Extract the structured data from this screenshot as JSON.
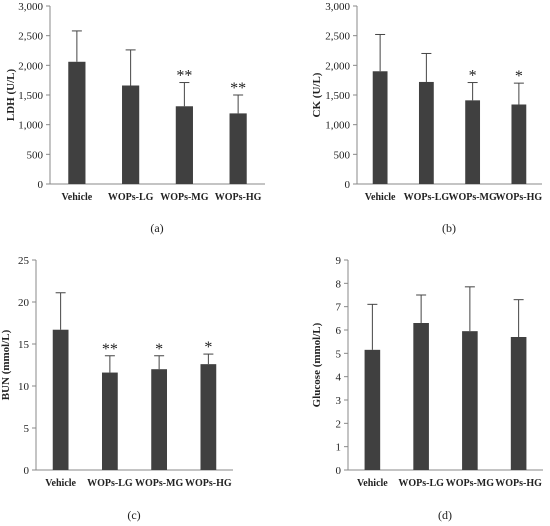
{
  "chart_data": [
    {
      "type": "bar",
      "panel_label": "(a)",
      "ylabel": "LDH (U/L)",
      "ylim": [
        0,
        3000
      ],
      "yticks": [
        "0",
        "500",
        "1,000",
        "1,500",
        "2,000",
        "2,500",
        "3,000"
      ],
      "ytick_values": [
        0,
        500,
        1000,
        1500,
        2000,
        2500,
        3000
      ],
      "categories": [
        "Vehicle",
        "WOPs-LG",
        "WOPs-MG",
        "WOPs-HG"
      ],
      "values": [
        2060,
        1660,
        1310,
        1190
      ],
      "errors": [
        520,
        600,
        400,
        310
      ],
      "significance": [
        "",
        "",
        "**",
        "**"
      ],
      "bar_color": "#404040"
    },
    {
      "type": "bar",
      "panel_label": "(b)",
      "ylabel": "CK (U/L)",
      "ylim": [
        0,
        3000
      ],
      "yticks": [
        "0",
        "500",
        "1,000",
        "1,500",
        "2,000",
        "2,500",
        "3,000"
      ],
      "ytick_values": [
        0,
        500,
        1000,
        1500,
        2000,
        2500,
        3000
      ],
      "categories": [
        "Vehicle",
        "WOPs-LG",
        "WOPs-MG",
        "WOPs-HG"
      ],
      "values": [
        1900,
        1720,
        1410,
        1340
      ],
      "errors": [
        620,
        480,
        300,
        360
      ],
      "significance": [
        "",
        "",
        "*",
        "*"
      ],
      "bar_color": "#404040"
    },
    {
      "type": "bar",
      "panel_label": "(c)",
      "ylabel": "BUN (mmol/L)",
      "ylim": [
        0,
        25
      ],
      "yticks": [
        "0",
        "5",
        "10",
        "15",
        "20",
        "25"
      ],
      "ytick_values": [
        0,
        5,
        10,
        15,
        20,
        25
      ],
      "categories": [
        "Vehicle",
        "WOPs-LG",
        "WOPs-MG",
        "WOPs-HG"
      ],
      "values": [
        16.7,
        11.6,
        12.0,
        12.6
      ],
      "errors": [
        4.4,
        2.0,
        1.6,
        1.2
      ],
      "significance": [
        "",
        "**",
        "*",
        "*"
      ],
      "bar_color": "#404040"
    },
    {
      "type": "bar",
      "panel_label": "(d)",
      "ylabel": "Glucose (mmol/L)",
      "ylim": [
        0,
        9
      ],
      "yticks": [
        "0",
        "1",
        "2",
        "3",
        "4",
        "5",
        "6",
        "7",
        "8",
        "9"
      ],
      "ytick_values": [
        0,
        1,
        2,
        3,
        4,
        5,
        6,
        7,
        8,
        9
      ],
      "categories": [
        "Vehicle",
        "WOPs-LG",
        "WOPs-MG",
        "WOPs-HG"
      ],
      "values": [
        5.15,
        6.3,
        5.95,
        5.7
      ],
      "errors": [
        1.95,
        1.2,
        1.9,
        1.6
      ],
      "significance": [
        "",
        "",
        "",
        ""
      ],
      "bar_color": "#404040"
    }
  ]
}
